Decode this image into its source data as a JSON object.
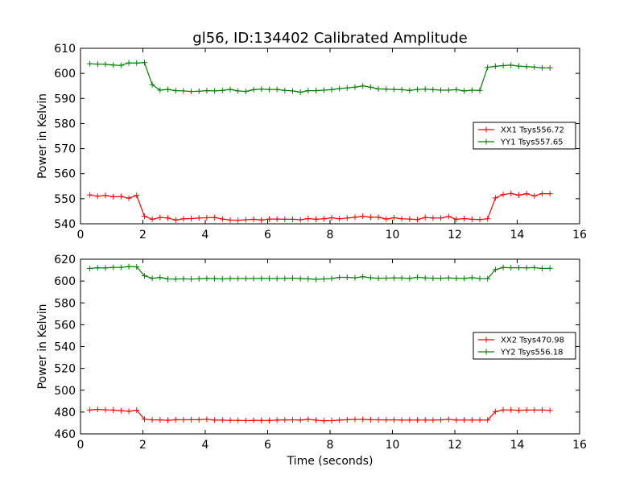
{
  "figure": {
    "title": "gl56, ID:134402 Calibrated Amplitude",
    "colors": {
      "xx": "#ff0000",
      "yy": "#008000",
      "frame": "#000000"
    }
  },
  "chart_data": [
    {
      "type": "line",
      "title": "gl56, ID:134402 Calibrated Amplitude",
      "xlabel": "",
      "ylabel": "Power in Kelvin",
      "xlim": [
        0,
        16
      ],
      "ylim": [
        540,
        610
      ],
      "xticks": [
        "0",
        "2",
        "4",
        "6",
        "8",
        "10",
        "12",
        "14",
        "16"
      ],
      "yticks": [
        "540",
        "550",
        "560",
        "570",
        "580",
        "590",
        "600",
        "610"
      ],
      "grid": false,
      "legend_position": "center-right",
      "x": [
        0.3,
        0.55,
        0.8,
        1.05,
        1.3,
        1.55,
        1.8,
        2.05,
        2.3,
        2.55,
        2.8,
        3.05,
        3.3,
        3.55,
        3.8,
        4.05,
        4.3,
        4.55,
        4.8,
        5.05,
        5.3,
        5.55,
        5.8,
        6.05,
        6.3,
        6.55,
        6.8,
        7.05,
        7.3,
        7.55,
        7.8,
        8.05,
        8.3,
        8.55,
        8.8,
        9.05,
        9.3,
        9.55,
        9.8,
        10.05,
        10.3,
        10.55,
        10.8,
        11.05,
        11.3,
        11.55,
        11.8,
        12.05,
        12.3,
        12.55,
        12.8,
        13.05,
        13.3,
        13.55,
        13.8,
        14.05,
        14.3,
        14.55,
        14.8,
        15.05
      ],
      "series": [
        {
          "name": "XX1 Tsys556.72",
          "color": "#ff0000",
          "values": [
            551.5,
            551.0,
            551.3,
            550.8,
            550.9,
            550.2,
            551.3,
            543.0,
            541.8,
            542.5,
            542.3,
            541.5,
            542.0,
            542.1,
            542.3,
            542.4,
            542.5,
            541.9,
            541.5,
            541.4,
            541.6,
            541.8,
            541.5,
            541.9,
            541.9,
            541.8,
            541.8,
            541.6,
            542.1,
            541.8,
            542.0,
            542.4,
            542.0,
            542.3,
            542.6,
            543.0,
            542.6,
            542.6,
            541.9,
            542.4,
            542.0,
            541.9,
            541.7,
            542.5,
            542.3,
            542.3,
            542.9,
            541.8,
            542.1,
            541.8,
            541.7,
            542.0,
            550.3,
            551.7,
            552.1,
            551.4,
            552.0,
            551.1,
            552.0,
            552.0
          ]
        },
        {
          "name": "YY1 Tsys557.65",
          "color": "#008000",
          "values": [
            603.8,
            603.7,
            603.6,
            603.3,
            603.2,
            604.2,
            604.1,
            604.3,
            595.5,
            593.3,
            593.6,
            593.1,
            593.0,
            592.8,
            592.9,
            593.1,
            593.0,
            593.2,
            593.6,
            593.0,
            592.8,
            593.5,
            593.7,
            593.6,
            593.6,
            593.2,
            593.0,
            592.5,
            593.1,
            593.1,
            593.3,
            593.5,
            593.9,
            594.2,
            594.5,
            595.0,
            594.5,
            593.8,
            593.7,
            593.6,
            593.5,
            593.2,
            593.6,
            593.7,
            593.5,
            593.3,
            593.3,
            593.5,
            593.0,
            593.3,
            593.2,
            602.4,
            602.8,
            603.1,
            603.3,
            602.9,
            602.7,
            602.5,
            602.2,
            602.2
          ]
        }
      ]
    },
    {
      "type": "line",
      "title": "",
      "xlabel": "Time (seconds)",
      "ylabel": "Power in Kelvin",
      "xlim": [
        0,
        16
      ],
      "ylim": [
        460,
        620
      ],
      "xticks": [
        "0",
        "2",
        "4",
        "6",
        "8",
        "10",
        "12",
        "14",
        "16"
      ],
      "yticks": [
        "460",
        "480",
        "500",
        "520",
        "540",
        "560",
        "580",
        "600",
        "620"
      ],
      "grid": false,
      "legend_position": "center-right",
      "x": [
        0.3,
        0.55,
        0.8,
        1.05,
        1.3,
        1.55,
        1.8,
        2.05,
        2.3,
        2.55,
        2.8,
        3.05,
        3.3,
        3.55,
        3.8,
        4.05,
        4.3,
        4.55,
        4.8,
        5.05,
        5.3,
        5.55,
        5.8,
        6.05,
        6.3,
        6.55,
        6.8,
        7.05,
        7.3,
        7.55,
        7.8,
        8.05,
        8.3,
        8.55,
        8.8,
        9.05,
        9.3,
        9.55,
        9.8,
        10.05,
        10.3,
        10.55,
        10.8,
        11.05,
        11.3,
        11.55,
        11.8,
        12.05,
        12.3,
        12.55,
        12.8,
        13.05,
        13.3,
        13.55,
        13.8,
        14.05,
        14.3,
        14.55,
        14.8,
        15.05
      ],
      "series": [
        {
          "name": "XX2 Tsys470.98",
          "color": "#ff0000",
          "values": [
            481.8,
            482.5,
            482.0,
            481.8,
            481.3,
            480.7,
            481.7,
            473.5,
            472.8,
            472.8,
            472.4,
            473.0,
            472.9,
            473.0,
            473.0,
            473.4,
            472.6,
            472.6,
            472.4,
            472.4,
            472.2,
            472.4,
            472.3,
            472.3,
            472.6,
            472.8,
            472.9,
            472.6,
            473.4,
            472.5,
            472.0,
            472.2,
            472.6,
            473.0,
            473.3,
            473.3,
            473.0,
            472.9,
            472.8,
            472.9,
            472.6,
            472.7,
            472.7,
            472.7,
            472.6,
            472.8,
            473.4,
            472.6,
            472.7,
            472.7,
            472.7,
            472.7,
            480.4,
            481.9,
            481.9,
            481.6,
            481.8,
            481.8,
            481.8,
            481.6
          ]
        },
        {
          "name": "YY2 Tsys556.18",
          "color": "#008000",
          "values": [
            611.5,
            612.2,
            612.0,
            612.5,
            612.5,
            613.3,
            613.0,
            604.8,
            602.5,
            603.3,
            601.9,
            601.8,
            602.0,
            601.8,
            602.1,
            602.4,
            602.2,
            601.9,
            602.3,
            602.3,
            602.3,
            602.3,
            602.4,
            602.3,
            602.3,
            602.4,
            602.7,
            602.2,
            602.0,
            601.6,
            601.9,
            602.3,
            603.4,
            603.4,
            603.0,
            604.0,
            603.0,
            602.6,
            602.7,
            602.9,
            602.8,
            602.4,
            603.5,
            602.9,
            602.6,
            602.6,
            602.9,
            602.5,
            602.4,
            603.1,
            602.3,
            602.2,
            610.5,
            612.4,
            612.2,
            612.2,
            612.1,
            612.3,
            611.5,
            611.7
          ]
        }
      ]
    }
  ]
}
